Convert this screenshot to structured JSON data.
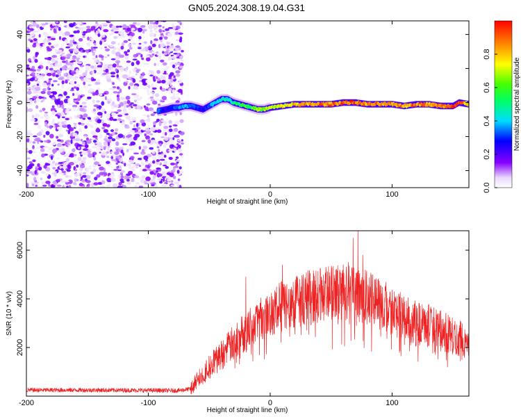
{
  "title": "GN05.2024.308.19.04.G31",
  "colors": {
    "snr_line": "#ee2222",
    "axes": "#000000",
    "background": "#ffffff"
  },
  "chart_data": [
    {
      "type": "heatmap",
      "name": "spectrogram",
      "xlabel": "Height of straight line (km)",
      "ylabel": "Frequency (Hz)",
      "xlim": [
        -200,
        163
      ],
      "ylim": [
        -50,
        48
      ],
      "xticks": [
        -200,
        -100,
        0,
        100
      ],
      "yticks": [
        40,
        20,
        0,
        -20,
        -40
      ],
      "colorbar": {
        "label": "Normalized spectral amplitude",
        "range": [
          0,
          1
        ],
        "ticks": [
          "0.8",
          "0.6",
          "0.4",
          "0.2",
          "0.0"
        ],
        "tick_values": [
          0.8,
          0.6,
          0.4,
          0.2,
          0.0
        ],
        "colormap": "rainbow"
      },
      "noise_region_x": [
        -200,
        -72
      ],
      "ridge": {
        "x": [
          -92,
          -85,
          -80,
          -75,
          -70,
          -65,
          -60,
          -55,
          -50,
          -45,
          -40,
          -35,
          -30,
          -25,
          -20,
          -15,
          -10,
          -5,
          0,
          10,
          20,
          30,
          40,
          50,
          60,
          70,
          80,
          90,
          100,
          110,
          120,
          130,
          140,
          150,
          155,
          163
        ],
        "y": [
          -5,
          -4,
          -3,
          -3,
          -2,
          -2,
          -3,
          -4,
          -2,
          0,
          2,
          2,
          0,
          -1,
          -2,
          -3,
          -4,
          -4,
          -3,
          -2,
          -1,
          -1,
          -1,
          -1,
          0,
          0,
          -1,
          -1,
          -1,
          -2,
          -1,
          -1,
          -2,
          -2,
          0,
          -1
        ],
        "amplitude": [
          0.35,
          0.25,
          0.3,
          0.35,
          0.4,
          0.35,
          0.3,
          0.25,
          0.35,
          0.4,
          0.45,
          0.45,
          0.5,
          0.55,
          0.6,
          0.6,
          0.65,
          0.65,
          0.7,
          0.75,
          0.8,
          0.85,
          0.9,
          0.88,
          0.92,
          0.95,
          0.85,
          0.88,
          0.9,
          0.85,
          0.9,
          0.88,
          0.85,
          0.92,
          0.95,
          0.8
        ]
      }
    },
    {
      "type": "line",
      "name": "snr",
      "xlabel": "Height of straight line (km)",
      "ylabel": "SNR (10 * v/v)",
      "xlim": [
        -200,
        163
      ],
      "ylim": [
        0,
        6800
      ],
      "xticks": [
        -200,
        -100,
        0,
        100
      ],
      "yticks": [
        6000,
        4000,
        2000
      ],
      "envelope": {
        "x": [
          -200,
          -150,
          -100,
          -75,
          -65,
          -60,
          -50,
          -40,
          -30,
          -20,
          -10,
          0,
          10,
          20,
          30,
          40,
          50,
          60,
          70,
          80,
          90,
          100,
          110,
          120,
          130,
          140,
          150,
          163
        ],
        "y": [
          250,
          250,
          240,
          230,
          300,
          650,
          1200,
          1700,
          2200,
          2700,
          3100,
          3400,
          3700,
          3900,
          4050,
          4100,
          4200,
          4200,
          4350,
          4000,
          3800,
          3500,
          3200,
          3000,
          2900,
          2700,
          2450,
          2250
        ]
      },
      "spikes": [
        {
          "x": 72,
          "y": 6800
        },
        {
          "x": 68,
          "y": 6500
        },
        {
          "x": 64,
          "y": 5500
        },
        {
          "x": 76,
          "y": 5800
        },
        {
          "x": 60,
          "y": 5400
        },
        {
          "x": 10,
          "y": 5400
        },
        {
          "x": -20,
          "y": 4900
        },
        {
          "x": 50,
          "y": 5000
        }
      ]
    }
  ]
}
